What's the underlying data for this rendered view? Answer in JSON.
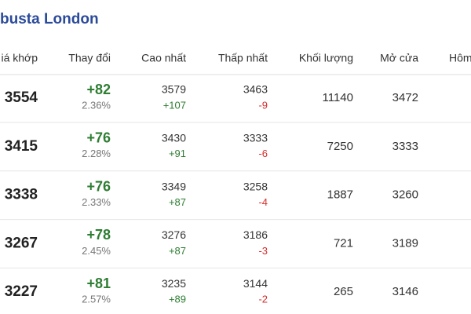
{
  "title": "busta London",
  "table": {
    "headers": [
      "iá khớp",
      "Thay đổi",
      "Cao nhất",
      "Thấp nhất",
      "Khối lượng",
      "Mở cửa",
      "Hôm"
    ],
    "rows": [
      [
        "3554",
        "+82",
        "2.36%",
        "3579",
        "+107",
        "3463",
        "-9",
        "11140",
        "3472"
      ],
      [
        "3415",
        "+76",
        "2.28%",
        "3430",
        "+91",
        "3333",
        "-6",
        "7250",
        "3333"
      ],
      [
        "3338",
        "+76",
        "2.33%",
        "3349",
        "+87",
        "3258",
        "-4",
        "1887",
        "3260"
      ],
      [
        "3267",
        "+78",
        "2.45%",
        "3276",
        "+87",
        "3186",
        "-3",
        "721",
        "3189"
      ],
      [
        "3227",
        "+81",
        "2.57%",
        "3235",
        "+89",
        "3144",
        "-2",
        "265",
        "3146"
      ]
    ]
  }
}
